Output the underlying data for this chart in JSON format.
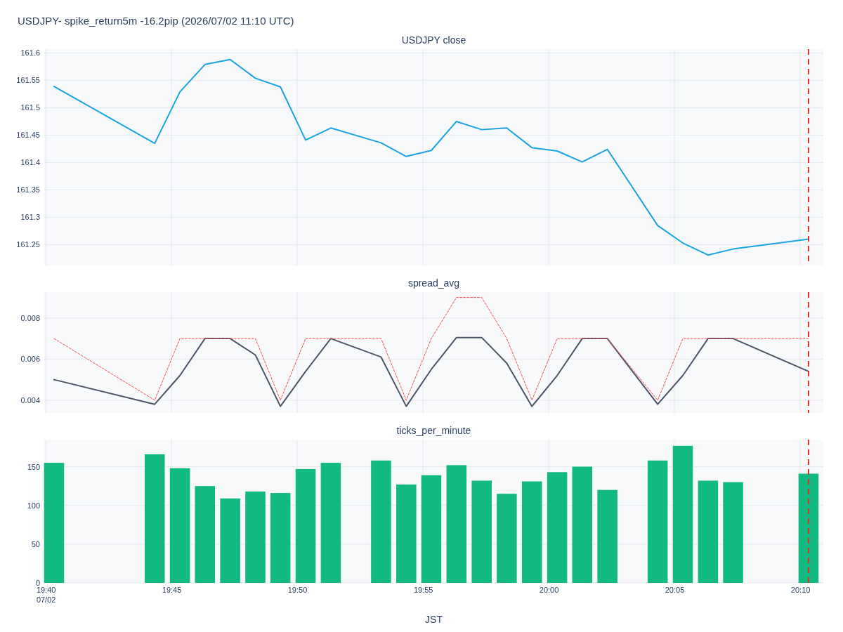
{
  "chart_data": [
    {
      "type": "line",
      "title": "USDJPY- spike_return5m -16.2pip (2026/07/02 11:10 UTC)",
      "subtitle": "USDJPY close",
      "x": [
        19.6722,
        19.7389,
        19.7556,
        19.7722,
        19.7889,
        19.8056,
        19.8222,
        19.8389,
        19.8556,
        19.8889,
        19.9056,
        19.9222,
        19.9389,
        19.9556,
        19.9722,
        19.9889,
        20.0056,
        20.0222,
        20.0389,
        20.0722,
        20.0889,
        20.1056,
        20.1222,
        20.1722
      ],
      "values": [
        161.539,
        161.435,
        161.529,
        161.579,
        161.588,
        161.554,
        161.538,
        161.441,
        161.463,
        161.436,
        161.411,
        161.422,
        161.475,
        161.46,
        161.463,
        161.427,
        161.421,
        161.401,
        161.424,
        161.285,
        161.253,
        161.231,
        161.242,
        161.26
      ],
      "color": "#1aa3e3",
      "xlim": [
        19.6657,
        20.182
      ],
      "ylim": [
        161.212,
        161.607
      ],
      "xticks": [
        {
          "value": 19.6667,
          "label": null
        },
        {
          "value": 19.75,
          "label": null
        },
        {
          "value": 19.8333,
          "label": null
        },
        {
          "value": 19.9167,
          "label": null
        },
        {
          "value": 20,
          "label": null
        },
        {
          "value": 20.0833,
          "label": null
        },
        {
          "value": 20.1667,
          "label": null
        }
      ],
      "yticks": [
        161.25,
        161.3,
        161.35,
        161.4,
        161.45,
        161.5,
        161.55,
        161.6
      ],
      "grid": true,
      "tick_labels": "y",
      "ref_lines": [
        {
          "axis": "x",
          "value": 20.1722,
          "color": "#e02d2d",
          "line_style": "dashed"
        }
      ]
    },
    {
      "type": "line",
      "title": "spread_avg",
      "x": [
        19.6722,
        19.7389,
        19.7556,
        19.7722,
        19.7889,
        19.8056,
        19.8222,
        19.8389,
        19.8556,
        19.8889,
        19.9056,
        19.9222,
        19.9389,
        19.9556,
        19.9722,
        19.9889,
        20.0056,
        20.0222,
        20.0389,
        20.0722,
        20.0889,
        20.1056,
        20.1222,
        20.1722
      ],
      "series": [
        {
          "color": "#4b5568",
          "line_style": "solid",
          "values": [
            0.005,
            0.0038,
            0.0052,
            0.007,
            0.007,
            0.0062,
            0.0037,
            0.0054,
            0.007,
            0.0061,
            0.0037,
            0.0055,
            0.00705,
            0.00705,
            0.0058,
            0.0037,
            0.0052,
            0.007,
            0.007,
            0.0038,
            0.0052,
            0.007,
            0.007,
            0.0054
          ]
        },
        {
          "color": "#f0504f",
          "line_style": "dotted",
          "values": [
            0.007,
            0.004,
            0.007,
            0.007,
            0.007,
            0.007,
            0.004,
            0.007,
            0.007,
            0.007,
            0.004,
            0.007,
            0.009,
            0.009,
            0.007,
            0.004,
            0.007,
            0.007,
            0.007,
            0.004,
            0.007,
            0.007,
            0.007,
            0.007
          ]
        }
      ],
      "xlim": [
        19.6657,
        20.182
      ],
      "ylim": [
        0.00338,
        0.00926
      ],
      "xticks": [
        {
          "value": 19.6667,
          "label": null
        },
        {
          "value": 19.75,
          "label": null
        },
        {
          "value": 19.8333,
          "label": null
        },
        {
          "value": 19.9167,
          "label": null
        },
        {
          "value": 20,
          "label": null
        },
        {
          "value": 20.0833,
          "label": null
        },
        {
          "value": 20.1667,
          "label": null
        }
      ],
      "yticks": [
        0.004,
        0.006,
        0.008
      ],
      "grid": true,
      "tick_labels": "y",
      "ref_lines": [
        {
          "axis": "x",
          "value": 20.1722,
          "color": "#e02d2d",
          "line_style": "dashed"
        }
      ]
    },
    {
      "type": "bar",
      "title": "ticks_per_minute",
      "xlabel": "JST",
      "x": [
        19.6722,
        19.7389,
        19.7556,
        19.7722,
        19.7889,
        19.8056,
        19.8222,
        19.8389,
        19.8556,
        19.8889,
        19.9056,
        19.9222,
        19.9389,
        19.9556,
        19.9722,
        19.9889,
        20.0056,
        20.0222,
        20.0389,
        20.0722,
        20.0889,
        20.1056,
        20.1222,
        20.1722
      ],
      "values": [
        155,
        166,
        148,
        125,
        109,
        118,
        116,
        147,
        155,
        158,
        127,
        139,
        152,
        132,
        115,
        131,
        143,
        150,
        120,
        158,
        177,
        132,
        130,
        141
      ],
      "color": "#12b981",
      "xlim": [
        19.6657,
        20.182
      ],
      "ylim": [
        0,
        185
      ],
      "xticks": [
        {
          "value": 19.6667,
          "label": "19:40\n07/02"
        },
        {
          "value": 19.75,
          "label": "19:45"
        },
        {
          "value": 19.8333,
          "label": "19:50"
        },
        {
          "value": 19.9167,
          "label": "19:55"
        },
        {
          "value": 20,
          "label": "20:00"
        },
        {
          "value": 20.0833,
          "label": "20:05"
        },
        {
          "value": 20.1667,
          "label": "20:10"
        }
      ],
      "yticks": [
        0,
        50,
        100,
        150
      ],
      "grid": true,
      "ref_lines": [
        {
          "axis": "x",
          "value": 20.1722,
          "color": "#e02d2d",
          "line_style": "dashed"
        }
      ]
    }
  ]
}
